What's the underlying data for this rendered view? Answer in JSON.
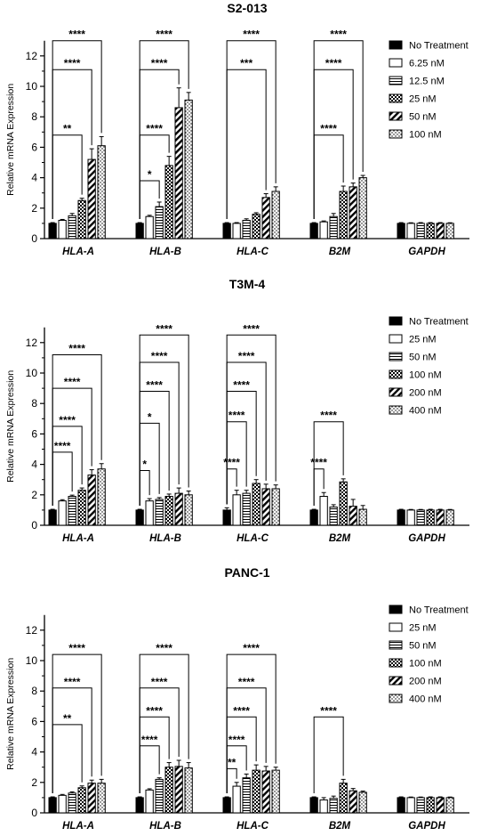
{
  "chart_data": [
    {
      "type": "bar",
      "title": "S2-013",
      "xlabel": "",
      "ylabel": "Relative mRNA Expression",
      "ylim": [
        0,
        13
      ],
      "yticks": [
        0,
        2,
        4,
        6,
        8,
        10,
        12
      ],
      "categories": [
        "HLA-A",
        "HLA-B",
        "HLA-C",
        "B2M",
        "GAPDH"
      ],
      "legend_position": "top-right",
      "series": [
        {
          "name": "No Treatment",
          "values": [
            1.0,
            1.0,
            1.0,
            1.0,
            1.0
          ],
          "errors": [
            0.05,
            0.05,
            0.05,
            0.05,
            0.05
          ]
        },
        {
          "name": "6.25 nM",
          "values": [
            1.2,
            1.45,
            1.0,
            1.1,
            1.0
          ],
          "errors": [
            0.06,
            0.08,
            0.05,
            0.06,
            0.04
          ]
        },
        {
          "name": "12.5 nM",
          "values": [
            1.5,
            2.1,
            1.2,
            1.45,
            1.0
          ],
          "errors": [
            0.15,
            0.3,
            0.1,
            0.2,
            0.05
          ]
        },
        {
          "name": "25 nM",
          "values": [
            2.5,
            4.8,
            1.6,
            3.1,
            1.0
          ],
          "errors": [
            0.15,
            0.6,
            0.1,
            0.35,
            0.05
          ]
        },
        {
          "name": "50 nM",
          "values": [
            5.2,
            8.6,
            2.7,
            3.4,
            1.0
          ],
          "errors": [
            0.7,
            1.3,
            0.25,
            0.25,
            0.05
          ]
        },
        {
          "name": "100 nM",
          "values": [
            6.1,
            9.1,
            3.1,
            4.0,
            1.0
          ],
          "errors": [
            0.6,
            0.5,
            0.3,
            0.15,
            0.04
          ]
        }
      ],
      "annotations": [
        {
          "cat": 0,
          "from": 0,
          "to": 5,
          "y": 13.0,
          "label": "****"
        },
        {
          "cat": 0,
          "from": 0,
          "to": 4,
          "y": 11.1,
          "label": "****"
        },
        {
          "cat": 0,
          "from": 0,
          "to": 3,
          "y": 6.8,
          "label": "**"
        },
        {
          "cat": 1,
          "from": 0,
          "to": 5,
          "y": 13.0,
          "label": "****"
        },
        {
          "cat": 1,
          "from": 0,
          "to": 4,
          "y": 11.1,
          "label": "****"
        },
        {
          "cat": 1,
          "from": 0,
          "to": 3,
          "y": 6.8,
          "label": "****"
        },
        {
          "cat": 1,
          "from": 0,
          "to": 2,
          "y": 3.8,
          "label": "*"
        },
        {
          "cat": 2,
          "from": 0,
          "to": 5,
          "y": 13.0,
          "label": "****"
        },
        {
          "cat": 2,
          "from": 0,
          "to": 4,
          "y": 11.1,
          "label": "***"
        },
        {
          "cat": 3,
          "from": 0,
          "to": 5,
          "y": 13.0,
          "label": "****"
        },
        {
          "cat": 3,
          "from": 0,
          "to": 4,
          "y": 11.1,
          "label": "****"
        },
        {
          "cat": 3,
          "from": 0,
          "to": 3,
          "y": 6.8,
          "label": "****"
        }
      ]
    },
    {
      "type": "bar",
      "title": "T3M-4",
      "xlabel": "",
      "ylabel": "Relative mRNA Expression",
      "ylim": [
        0,
        13
      ],
      "yticks": [
        0,
        2,
        4,
        6,
        8,
        10,
        12
      ],
      "categories": [
        "HLA-A",
        "HLA-B",
        "HLA-C",
        "B2M",
        "GAPDH"
      ],
      "legend_position": "top-right",
      "series": [
        {
          "name": "No Treatment",
          "values": [
            1.0,
            1.0,
            1.0,
            1.0,
            1.0
          ],
          "errors": [
            0.05,
            0.05,
            0.15,
            0.05,
            0.05
          ]
        },
        {
          "name": "25 nM",
          "values": [
            1.6,
            1.6,
            2.0,
            1.9,
            1.0
          ],
          "errors": [
            0.08,
            0.15,
            0.3,
            0.25,
            0.04
          ]
        },
        {
          "name": "50 nM",
          "values": [
            1.9,
            1.7,
            2.1,
            1.2,
            1.0
          ],
          "errors": [
            0.08,
            0.12,
            0.2,
            0.15,
            0.04
          ]
        },
        {
          "name": "100 nM",
          "values": [
            2.3,
            1.9,
            2.75,
            2.85,
            1.0
          ],
          "errors": [
            0.15,
            0.15,
            0.25,
            0.2,
            0.05
          ]
        },
        {
          "name": "200 nM",
          "values": [
            3.3,
            2.1,
            2.4,
            1.25,
            1.0
          ],
          "errors": [
            0.35,
            0.35,
            0.3,
            0.45,
            0.05
          ]
        },
        {
          "name": "400 nM",
          "values": [
            3.7,
            2.0,
            2.4,
            1.05,
            1.0
          ],
          "errors": [
            0.35,
            0.25,
            0.25,
            0.25,
            0.04
          ]
        }
      ],
      "annotations": [
        {
          "cat": 0,
          "from": 0,
          "to": 5,
          "y": 11.2,
          "label": "****"
        },
        {
          "cat": 0,
          "from": 0,
          "to": 4,
          "y": 9.0,
          "label": "****"
        },
        {
          "cat": 0,
          "from": 0,
          "to": 3,
          "y": 6.5,
          "label": "****"
        },
        {
          "cat": 0,
          "from": 0,
          "to": 2,
          "y": 4.8,
          "label": "****"
        },
        {
          "cat": 1,
          "from": 0,
          "to": 5,
          "y": 12.5,
          "label": "****"
        },
        {
          "cat": 1,
          "from": 0,
          "to": 4,
          "y": 10.7,
          "label": "****"
        },
        {
          "cat": 1,
          "from": 0,
          "to": 3,
          "y": 8.8,
          "label": "****"
        },
        {
          "cat": 1,
          "from": 0,
          "to": 2,
          "y": 6.7,
          "label": "*"
        },
        {
          "cat": 1,
          "from": 0,
          "to": 1,
          "y": 3.6,
          "label": "*"
        },
        {
          "cat": 2,
          "from": 0,
          "to": 5,
          "y": 12.5,
          "label": "****"
        },
        {
          "cat": 2,
          "from": 0,
          "to": 4,
          "y": 10.7,
          "label": "****"
        },
        {
          "cat": 2,
          "from": 0,
          "to": 3,
          "y": 8.8,
          "label": "****"
        },
        {
          "cat": 2,
          "from": 0,
          "to": 2,
          "y": 6.8,
          "label": "****"
        },
        {
          "cat": 2,
          "from": 0,
          "to": 1,
          "y": 3.7,
          "label": "****"
        },
        {
          "cat": 3,
          "from": 0,
          "to": 3,
          "y": 6.8,
          "label": "****"
        },
        {
          "cat": 3,
          "from": 0,
          "to": 1,
          "y": 3.7,
          "label": "****"
        }
      ]
    },
    {
      "type": "bar",
      "title": "PANC-1",
      "xlabel": "",
      "ylabel": "Relative mRNA Expression",
      "ylim": [
        0,
        13
      ],
      "yticks": [
        0,
        2,
        4,
        6,
        8,
        10,
        12
      ],
      "categories": [
        "HLA-A",
        "HLA-B",
        "HLA-C",
        "B2M",
        "GAPDH"
      ],
      "legend_position": "top-right",
      "series": [
        {
          "name": "No Treatment",
          "values": [
            1.0,
            1.0,
            1.0,
            1.0,
            1.0
          ],
          "errors": [
            0.05,
            0.05,
            0.05,
            0.05,
            0.05
          ]
        },
        {
          "name": "25 nM",
          "values": [
            1.15,
            1.5,
            1.75,
            0.85,
            1.0
          ],
          "errors": [
            0.06,
            0.08,
            0.25,
            0.15,
            0.04
          ]
        },
        {
          "name": "50 nM",
          "values": [
            1.3,
            2.2,
            2.3,
            0.95,
            1.0
          ],
          "errors": [
            0.08,
            0.1,
            0.25,
            0.15,
            0.04
          ]
        },
        {
          "name": "100 nM",
          "values": [
            1.65,
            3.0,
            2.8,
            1.95,
            1.0
          ],
          "errors": [
            0.12,
            0.3,
            0.35,
            0.25,
            0.05
          ]
        },
        {
          "name": "200 nM",
          "values": [
            1.95,
            3.05,
            2.75,
            1.45,
            1.0
          ],
          "errors": [
            0.2,
            0.4,
            0.3,
            0.15,
            0.05
          ]
        },
        {
          "name": "400 nM",
          "values": [
            1.95,
            2.95,
            2.8,
            1.35,
            1.0
          ],
          "errors": [
            0.25,
            0.35,
            0.2,
            0.08,
            0.04
          ]
        }
      ],
      "annotations": [
        {
          "cat": 0,
          "from": 0,
          "to": 5,
          "y": 10.4,
          "label": "****"
        },
        {
          "cat": 0,
          "from": 0,
          "to": 4,
          "y": 8.2,
          "label": "****"
        },
        {
          "cat": 0,
          "from": 0,
          "to": 3,
          "y": 5.8,
          "label": "**"
        },
        {
          "cat": 1,
          "from": 0,
          "to": 5,
          "y": 10.4,
          "label": "****"
        },
        {
          "cat": 1,
          "from": 0,
          "to": 4,
          "y": 8.2,
          "label": "****"
        },
        {
          "cat": 1,
          "from": 0,
          "to": 3,
          "y": 6.3,
          "label": "****"
        },
        {
          "cat": 1,
          "from": 0,
          "to": 2,
          "y": 4.4,
          "label": "****"
        },
        {
          "cat": 2,
          "from": 0,
          "to": 5,
          "y": 10.4,
          "label": "****"
        },
        {
          "cat": 2,
          "from": 0,
          "to": 4,
          "y": 8.2,
          "label": "****"
        },
        {
          "cat": 2,
          "from": 0,
          "to": 3,
          "y": 6.3,
          "label": "****"
        },
        {
          "cat": 2,
          "from": 0,
          "to": 2,
          "y": 4.4,
          "label": "****"
        },
        {
          "cat": 2,
          "from": 0,
          "to": 1,
          "y": 2.9,
          "label": "**"
        },
        {
          "cat": 3,
          "from": 0,
          "to": 3,
          "y": 6.3,
          "label": "****"
        }
      ]
    }
  ]
}
